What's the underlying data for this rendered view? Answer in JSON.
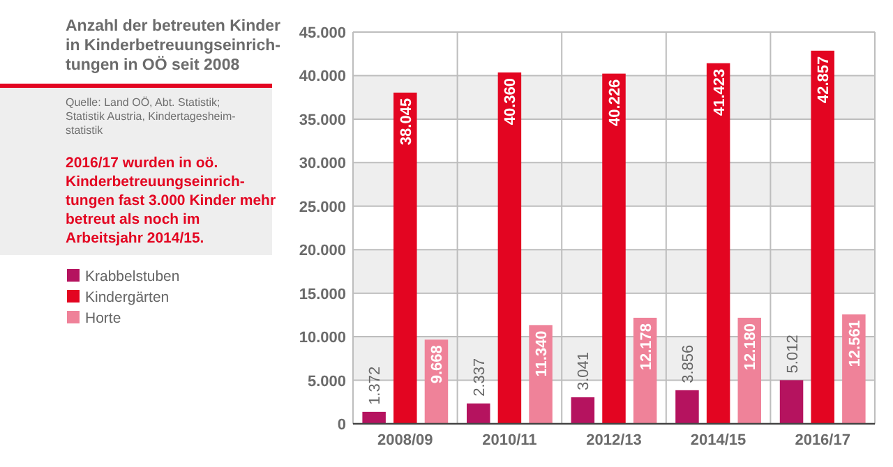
{
  "chart_data": {
    "type": "bar",
    "title": "Anzahl der betreuten Kinder in Kinderbetreuungseinrich-tungen in OÖ seit 2008",
    "annotations": [
      "Quelle: Land OÖ, Abt. Statistik; Statistik Austria, Kindertagesheim-statistik",
      "2016/17 wurden in oö. Kinderbetreuungseinrich-tungen fast 3.000 Kinder mehr betreut als noch im Arbeitsjahr 2014/15."
    ],
    "categories": [
      "2008/09",
      "2010/11",
      "2012/13",
      "2014/15",
      "2016/17"
    ],
    "series": [
      {
        "name": "Krabbelstuben",
        "color": "#b5135f",
        "values": [
          1372,
          2337,
          3041,
          3856,
          5012
        ],
        "value_labels": [
          "1.372",
          "2.337",
          "3.041",
          "3.856",
          "5.012"
        ]
      },
      {
        "name": "Kindergärten",
        "color": "#e30521",
        "values": [
          38045,
          40360,
          40226,
          41423,
          42857
        ],
        "value_labels": [
          "38.045",
          "40.360",
          "40.226",
          "41.423",
          "42.857"
        ]
      },
      {
        "name": "Horte",
        "color": "#ef8299",
        "values": [
          9668,
          11340,
          12178,
          12180,
          12561
        ],
        "value_labels": [
          "9.668",
          "11.340",
          "12.178",
          "12.180",
          "12.561"
        ]
      }
    ],
    "ylim": [
      0,
      45000
    ],
    "yticks": [
      {
        "value": 0,
        "label": "0"
      },
      {
        "value": 5000,
        "label": "5.000"
      },
      {
        "value": 10000,
        "label": "10.000"
      },
      {
        "value": 15000,
        "label": "15.000"
      },
      {
        "value": 20000,
        "label": "20.000"
      },
      {
        "value": 25000,
        "label": "25.000"
      },
      {
        "value": 30000,
        "label": "30.000"
      },
      {
        "value": 35000,
        "label": "35.000"
      },
      {
        "value": 40000,
        "label": "40.000"
      },
      {
        "value": 45000,
        "label": "45.000"
      }
    ],
    "grid": true,
    "legend": "left"
  }
}
